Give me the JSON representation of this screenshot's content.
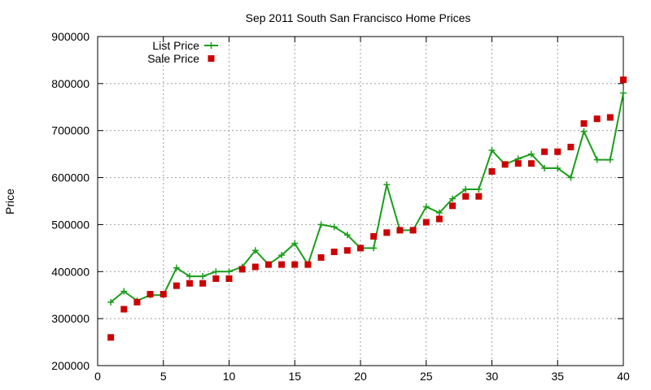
{
  "chart_data": {
    "type": "line",
    "title": "Sep 2011 South San Francisco Home Prices",
    "xlabel": "",
    "ylabel": "Price",
    "xlim": [
      0,
      40
    ],
    "ylim": [
      200000,
      900000
    ],
    "x_ticks": [
      "0",
      "5",
      "10",
      "15",
      "20",
      "25",
      "30",
      "35",
      "40"
    ],
    "y_ticks": [
      "200000",
      "300000",
      "400000",
      "500000",
      "600000",
      "700000",
      "800000",
      "900000"
    ],
    "grid": true,
    "legend_position": "top-left",
    "x": [
      1,
      2,
      3,
      4,
      5,
      6,
      7,
      8,
      9,
      10,
      11,
      12,
      13,
      14,
      15,
      16,
      17,
      18,
      19,
      20,
      21,
      22,
      23,
      24,
      25,
      26,
      27,
      28,
      29,
      30,
      31,
      32,
      33,
      34,
      35,
      36,
      37,
      38,
      39,
      40
    ],
    "series": [
      {
        "name": "List Price",
        "style": "line-with-plus-markers",
        "color": "#1a9e1a",
        "values": [
          335000,
          358000,
          338000,
          350000,
          350000,
          408000,
          390000,
          390000,
          400000,
          400000,
          410000,
          445000,
          415000,
          435000,
          460000,
          415000,
          500000,
          495000,
          478000,
          450000,
          450000,
          585000,
          488000,
          488000,
          538000,
          525000,
          555000,
          575000,
          575000,
          658000,
          628000,
          640000,
          650000,
          620000,
          620000,
          600000,
          698000,
          638000,
          638000,
          780000
        ]
      },
      {
        "name": "Sale Price",
        "style": "square-markers",
        "color": "#cc0000",
        "values": [
          260000,
          320000,
          335000,
          352000,
          352000,
          370000,
          375000,
          375000,
          385000,
          385000,
          405000,
          410000,
          415000,
          415000,
          415000,
          415000,
          430000,
          442000,
          445000,
          450000,
          475000,
          483000,
          488000,
          488000,
          505000,
          512000,
          540000,
          560000,
          560000,
          613000,
          628000,
          630000,
          630000,
          655000,
          655000,
          665000,
          715000,
          725000,
          728000,
          808000
        ]
      }
    ]
  }
}
